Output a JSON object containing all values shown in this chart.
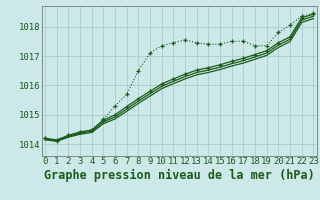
{
  "title": "Graphe pression niveau de la mer (hPa)",
  "background_color": "#cce8e8",
  "grid_color": "#aacccc",
  "line_color": "#1a5c1a",
  "x_ticks": [
    0,
    1,
    2,
    3,
    4,
    5,
    6,
    7,
    8,
    9,
    10,
    11,
    12,
    13,
    14,
    15,
    16,
    17,
    18,
    19,
    20,
    21,
    22,
    23
  ],
  "y_ticks": [
    1014,
    1015,
    1016,
    1017,
    1018
  ],
  "ylim": [
    1013.6,
    1018.7
  ],
  "xlim": [
    -0.3,
    23.3
  ],
  "series": [
    {
      "x": [
        0,
        1,
        2,
        3,
        4,
        5,
        6,
        7,
        8,
        9,
        10,
        11,
        12,
        13,
        14,
        15,
        16,
        17,
        18,
        19,
        20,
        21,
        22,
        23
      ],
      "y": [
        1014.2,
        1014.1,
        1014.3,
        1014.4,
        1014.5,
        1014.85,
        1015.3,
        1015.7,
        1016.5,
        1017.1,
        1017.35,
        1017.45,
        1017.55,
        1017.45,
        1017.4,
        1017.4,
        1017.5,
        1017.5,
        1017.35,
        1017.35,
        1017.8,
        1018.05,
        1018.35,
        1018.45
      ],
      "style": "dotted",
      "marker": "+"
    },
    {
      "x": [
        0,
        1,
        2,
        3,
        4,
        5,
        6,
        7,
        8,
        9,
        10,
        11,
        12,
        13,
        14,
        15,
        16,
        17,
        18,
        19,
        20,
        21,
        22,
        23
      ],
      "y": [
        1014.2,
        1014.15,
        1014.3,
        1014.42,
        1014.48,
        1014.82,
        1015.0,
        1015.28,
        1015.55,
        1015.8,
        1016.05,
        1016.22,
        1016.38,
        1016.52,
        1016.6,
        1016.7,
        1016.82,
        1016.92,
        1017.05,
        1017.18,
        1017.45,
        1017.65,
        1018.3,
        1018.42
      ],
      "style": "solid",
      "marker": "+"
    },
    {
      "x": [
        0,
        1,
        2,
        3,
        4,
        5,
        6,
        7,
        8,
        9,
        10,
        11,
        12,
        13,
        14,
        15,
        16,
        17,
        18,
        19,
        20,
        21,
        22,
        23
      ],
      "y": [
        1014.18,
        1014.12,
        1014.27,
        1014.38,
        1014.44,
        1014.76,
        1014.93,
        1015.2,
        1015.47,
        1015.72,
        1015.97,
        1016.14,
        1016.3,
        1016.44,
        1016.52,
        1016.62,
        1016.74,
        1016.84,
        1016.97,
        1017.1,
        1017.37,
        1017.57,
        1018.22,
        1018.35
      ],
      "style": "solid",
      "marker": null
    },
    {
      "x": [
        0,
        1,
        2,
        3,
        4,
        5,
        6,
        7,
        8,
        9,
        10,
        11,
        12,
        13,
        14,
        15,
        16,
        17,
        18,
        19,
        20,
        21,
        22,
        23
      ],
      "y": [
        1014.15,
        1014.1,
        1014.24,
        1014.34,
        1014.4,
        1014.7,
        1014.86,
        1015.12,
        1015.39,
        1015.64,
        1015.89,
        1016.06,
        1016.22,
        1016.36,
        1016.44,
        1016.54,
        1016.66,
        1016.76,
        1016.89,
        1017.02,
        1017.29,
        1017.49,
        1018.14,
        1018.27
      ],
      "style": "solid",
      "marker": null
    }
  ],
  "title_fontsize": 8.5,
  "tick_fontsize": 6.5,
  "title_color": "#1a5c1a",
  "tick_color": "#1a5c1a",
  "spine_color": "#666666"
}
